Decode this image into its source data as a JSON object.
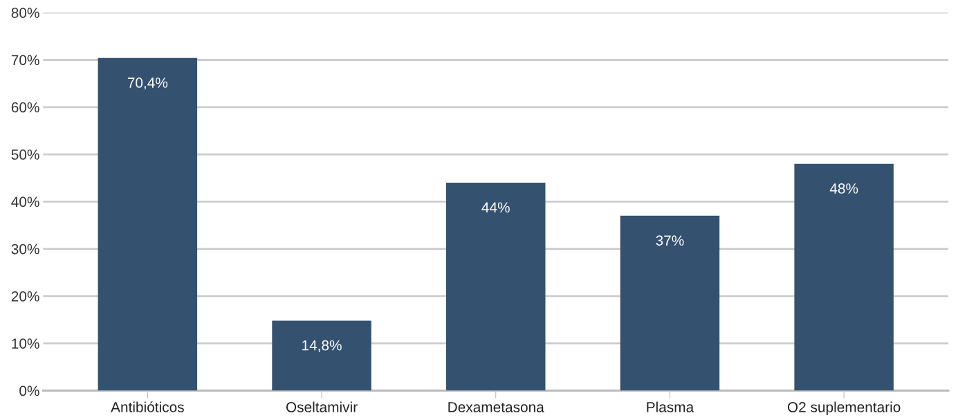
{
  "chart_data": {
    "type": "bar",
    "categories": [
      "Antibióticos",
      "Oseltamivir",
      "Dexametasona",
      "Plasma",
      "O2 suplementario"
    ],
    "values": [
      70.4,
      14.8,
      44,
      37,
      48
    ],
    "value_labels": [
      "70,4%",
      "14,8%",
      "44%",
      "37%",
      "48%"
    ],
    "color": "#34516f",
    "ylim": [
      0,
      80
    ],
    "yticks": [
      {
        "value": 0,
        "label": "0%"
      },
      {
        "value": 10,
        "label": "10%"
      },
      {
        "value": 20,
        "label": "20%"
      },
      {
        "value": 30,
        "label": "30%"
      },
      {
        "value": 40,
        "label": "40%"
      },
      {
        "value": 50,
        "label": "50%"
      },
      {
        "value": 60,
        "label": "60%"
      },
      {
        "value": 70,
        "label": "70%"
      },
      {
        "value": 80,
        "label": "80%"
      }
    ],
    "grid": "y"
  }
}
